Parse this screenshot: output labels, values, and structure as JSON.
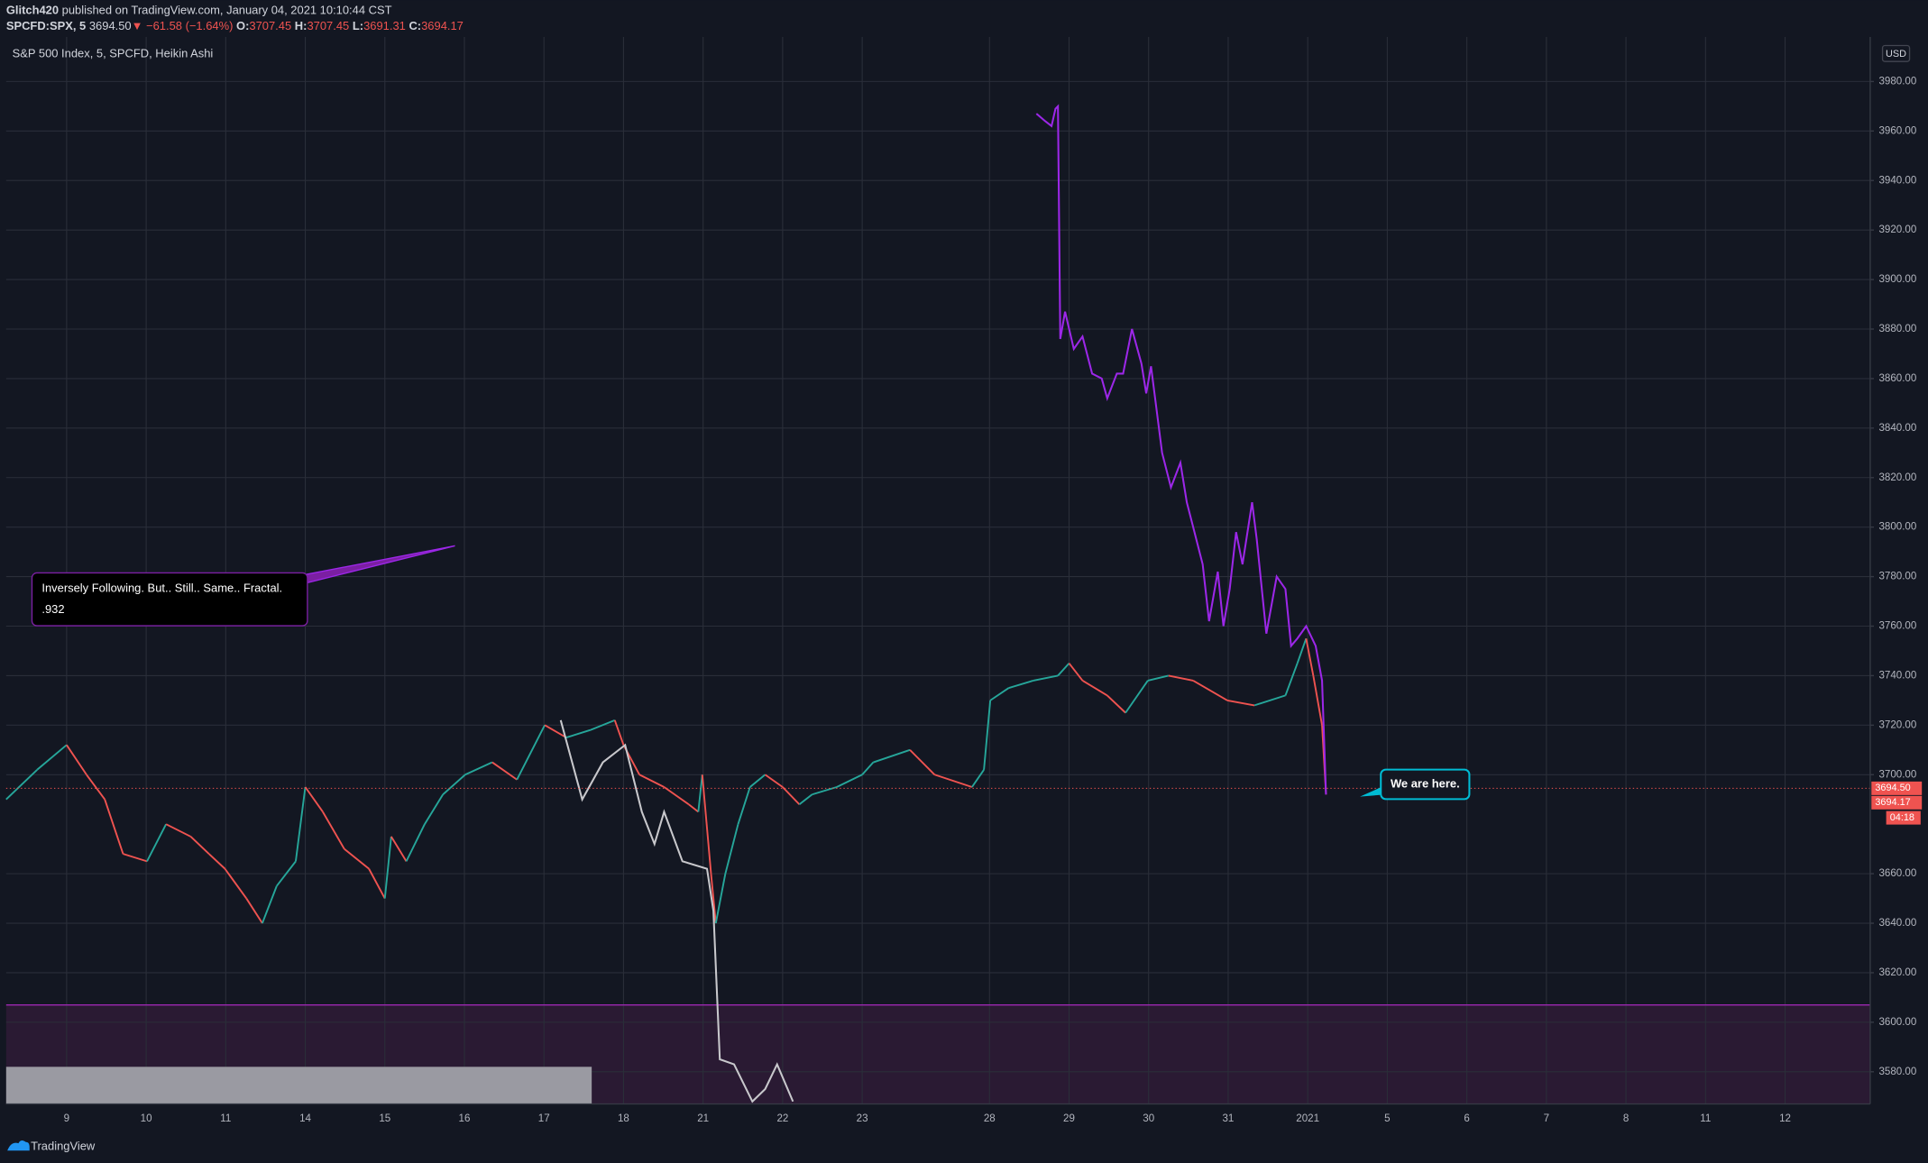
{
  "header": {
    "author": "Glitch420",
    "published": "published on TradingView.com, January 04, 2021 10:10:44 CST",
    "quote": [
      "SPCFD:SPX, 5",
      "3694.50",
      "▼ −61.58 (−1.64%)",
      "O:",
      "3707.45",
      "H:",
      "3707.45",
      "L:",
      "3691.31",
      "C:",
      "3694.17"
    ]
  },
  "footer": {
    "brand": "TradingView"
  },
  "currency": "USD",
  "chart_data": {
    "type": "line",
    "title": "S&P 500 Index, 5, SPCFD, Heikin Ashi",
    "xlim": [
      -0.76,
      22.67
    ],
    "ylim": [
      3567,
      3998
    ],
    "grid": true,
    "xticks": [
      {
        "value": 0,
        "label": "9"
      },
      {
        "value": 1,
        "label": "10"
      },
      {
        "value": 2,
        "label": "11"
      },
      {
        "value": 3,
        "label": "14"
      },
      {
        "value": 4,
        "label": "15"
      },
      {
        "value": 5,
        "label": "16"
      },
      {
        "value": 6,
        "label": "17"
      },
      {
        "value": 7,
        "label": "18"
      },
      {
        "value": 8,
        "label": "21"
      },
      {
        "value": 9,
        "label": "22"
      },
      {
        "value": 10,
        "label": "23"
      },
      {
        "value": 11.6,
        "label": "28"
      },
      {
        "value": 12.6,
        "label": "29"
      },
      {
        "value": 13.6,
        "label": "30"
      },
      {
        "value": 14.6,
        "label": "31"
      },
      {
        "value": 15.6,
        "label": "2021"
      },
      {
        "value": 16.6,
        "label": "5"
      },
      {
        "value": 17.6,
        "label": "6"
      },
      {
        "value": 18.6,
        "label": "7"
      },
      {
        "value": 19.6,
        "label": "8"
      },
      {
        "value": 20.6,
        "label": "11"
      },
      {
        "value": 21.6,
        "label": "12"
      }
    ],
    "yticks": [
      {
        "value": 3580,
        "label": "3580.00"
      },
      {
        "value": 3600,
        "label": "3600.00"
      },
      {
        "value": 3620,
        "label": "3620.00"
      },
      {
        "value": 3640,
        "label": "3640.00"
      },
      {
        "value": 3660,
        "label": "3660.00"
      },
      {
        "value": 3700,
        "label": "3700.00"
      },
      {
        "value": 3720,
        "label": "3720.00"
      },
      {
        "value": 3740,
        "label": "3740.00"
      },
      {
        "value": 3760,
        "label": "3760.00"
      },
      {
        "value": 3780,
        "label": "3780.00"
      },
      {
        "value": 3800,
        "label": "3800.00"
      },
      {
        "value": 3820,
        "label": "3820.00"
      },
      {
        "value": 3840,
        "label": "3840.00"
      },
      {
        "value": 3860,
        "label": "3860.00"
      },
      {
        "value": 3880,
        "label": "3880.00"
      },
      {
        "value": 3900,
        "label": "3900.00"
      },
      {
        "value": 3920,
        "label": "3920.00"
      },
      {
        "value": 3940,
        "label": "3940.00"
      },
      {
        "value": 3960,
        "label": "3960.00"
      },
      {
        "value": 3980,
        "label": "3980.00"
      }
    ],
    "series": [
      {
        "up_color": "#26a69a",
        "down_color": "#ef5350",
        "x": [
          -0.76,
          -0.37,
          0,
          0.25,
          0.48,
          0.71,
          1.01,
          1.25,
          1.56,
          1.79,
          1.99,
          2.26,
          2.46,
          2.64,
          2.88,
          3.0,
          3.22,
          3.49,
          3.8,
          4.0,
          4.08,
          4.27,
          4.5,
          4.73,
          5.01,
          5.35,
          5.66,
          6.01,
          6.28,
          6.58,
          6.89,
          7.0,
          7.2,
          7.51,
          7.82,
          7.94,
          7.99,
          8.1,
          8.16,
          8.28,
          8.44,
          8.59,
          8.78,
          9.0,
          9.21,
          9.37,
          9.68,
          10.0,
          10.14,
          10.6,
          10.91,
          11.38,
          11.53,
          11.61,
          11.84,
          12.15,
          12.46,
          12.6,
          12.77,
          13.08,
          13.31,
          13.59,
          13.85,
          14.16,
          14.59,
          14.93,
          15.32,
          15.47,
          15.58,
          15.67,
          15.78,
          15.83
        ],
        "values": [
          3690,
          3702,
          3712,
          3700,
          3690,
          3668,
          3665,
          3680,
          3675,
          3668,
          3662,
          3650,
          3640,
          3655,
          3665,
          3695,
          3685,
          3670,
          3662,
          3650,
          3675,
          3665,
          3680,
          3692,
          3700,
          3705,
          3698,
          3720,
          3715,
          3718,
          3722,
          3712,
          3700,
          3695,
          3688,
          3685,
          3700,
          3660,
          3640,
          3660,
          3680,
          3695,
          3700,
          3695,
          3688,
          3692,
          3695,
          3700,
          3705,
          3710,
          3700,
          3695,
          3702,
          3730,
          3735,
          3738,
          3740,
          3745,
          3738,
          3732,
          3725,
          3738,
          3740,
          3738,
          3730,
          3728,
          3732,
          3745,
          3755,
          3740,
          3720,
          3692
        ]
      },
      {
        "color": "#9c27e8",
        "x": [
          12.19,
          12.3,
          12.38,
          12.43,
          12.46,
          12.49,
          12.55,
          12.66,
          12.77,
          12.89,
          13.01,
          13.08,
          13.2,
          13.28,
          13.39,
          13.51,
          13.57,
          13.63,
          13.77,
          13.88,
          14.0,
          14.08,
          14.16,
          14.28,
          14.36,
          14.47,
          14.54,
          14.62,
          14.7,
          14.78,
          14.9,
          14.96,
          15.08,
          15.21,
          15.32,
          15.39,
          15.47,
          15.58,
          15.7,
          15.78,
          15.83
        ],
        "values": [
          3967,
          3964,
          3962,
          3969,
          3970,
          3876,
          3887,
          3872,
          3877,
          3862,
          3860,
          3852,
          3862,
          3862,
          3880,
          3866,
          3854,
          3865,
          3830,
          3816,
          3826,
          3810,
          3800,
          3785,
          3762,
          3782,
          3760,
          3775,
          3798,
          3785,
          3810,
          3795,
          3757,
          3780,
          3775,
          3752,
          3755,
          3760,
          3752,
          3738,
          3692
        ]
      },
      {
        "color": "#c8c8cc",
        "x": [
          6.21,
          6.48,
          6.74,
          7.02,
          7.23,
          7.39,
          7.51,
          7.74,
          8.05,
          8.13,
          8.21,
          8.39,
          8.62,
          8.78,
          8.93,
          9.13
        ],
        "values": [
          3722,
          3690,
          3705,
          3712,
          3685,
          3672,
          3685,
          3665,
          3662,
          3645,
          3585,
          3583,
          3568,
          3573,
          3583,
          3568
        ]
      }
    ],
    "hlines": [
      {
        "value": 3607,
        "color": "#9c27b0"
      }
    ],
    "zones": [
      {
        "from": 3567,
        "to": 3607,
        "color": "#2a1a33"
      }
    ],
    "boxes": [
      {
        "x": [
          -0.76,
          6.6
        ],
        "y": [
          3567,
          3582
        ],
        "color": "#9a9aa2"
      }
    ],
    "price_tags": [
      {
        "value": 3694.5,
        "label": "3694.50"
      },
      {
        "value": 3694.17,
        "label": "3694.17"
      }
    ],
    "countdown": "04:18",
    "annotations": {
      "fractal": [
        "Inversely Following. But.. Still.. Same.. Fractal.",
        ".932"
      ],
      "here": "We are here."
    }
  }
}
